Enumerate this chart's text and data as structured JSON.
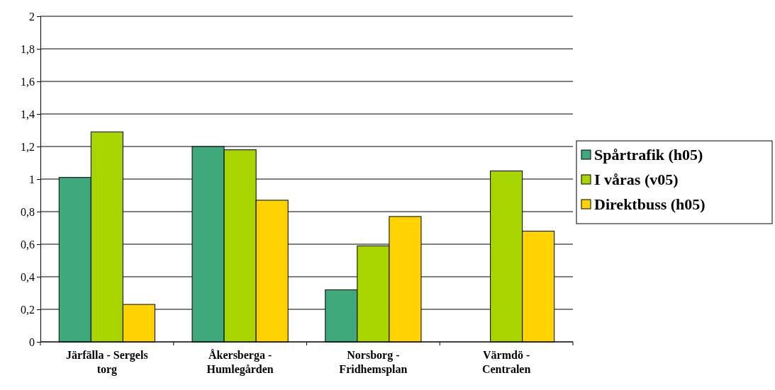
{
  "chart_data": {
    "type": "bar",
    "categories": [
      "Järfälla - Sergels torg",
      "Åkersberga - Humlegården",
      "Norsborg - Fridhemsplan",
      "Värmdö - Centralen"
    ],
    "series": [
      {
        "name": "Spårtrafik (h05)",
        "color": "#3fa97c",
        "values": [
          1.01,
          1.2,
          0.32,
          null
        ]
      },
      {
        "name": "I våras (v05)",
        "color": "#a8d400",
        "values": [
          1.29,
          1.18,
          0.59,
          1.05
        ]
      },
      {
        "name": "Direktbuss (h05)",
        "color": "#ffd200",
        "values": [
          0.23,
          0.87,
          0.77,
          0.68
        ]
      }
    ],
    "ylim": [
      0,
      2
    ],
    "yticks": [
      0,
      {
        "value": 0.2,
        "label": "0,2"
      },
      {
        "value": 0.4,
        "label": "0,4"
      },
      {
        "value": 0.6,
        "label": "0,6"
      },
      {
        "value": 0.8,
        "label": "0,8"
      },
      1,
      {
        "value": 1.2,
        "label": "1,2"
      },
      {
        "value": 1.4,
        "label": "1,4"
      },
      {
        "value": 1.6,
        "label": "1,6"
      },
      {
        "value": 1.8,
        "label": "1,8"
      },
      2
    ],
    "grid": "y",
    "legend": "right"
  }
}
